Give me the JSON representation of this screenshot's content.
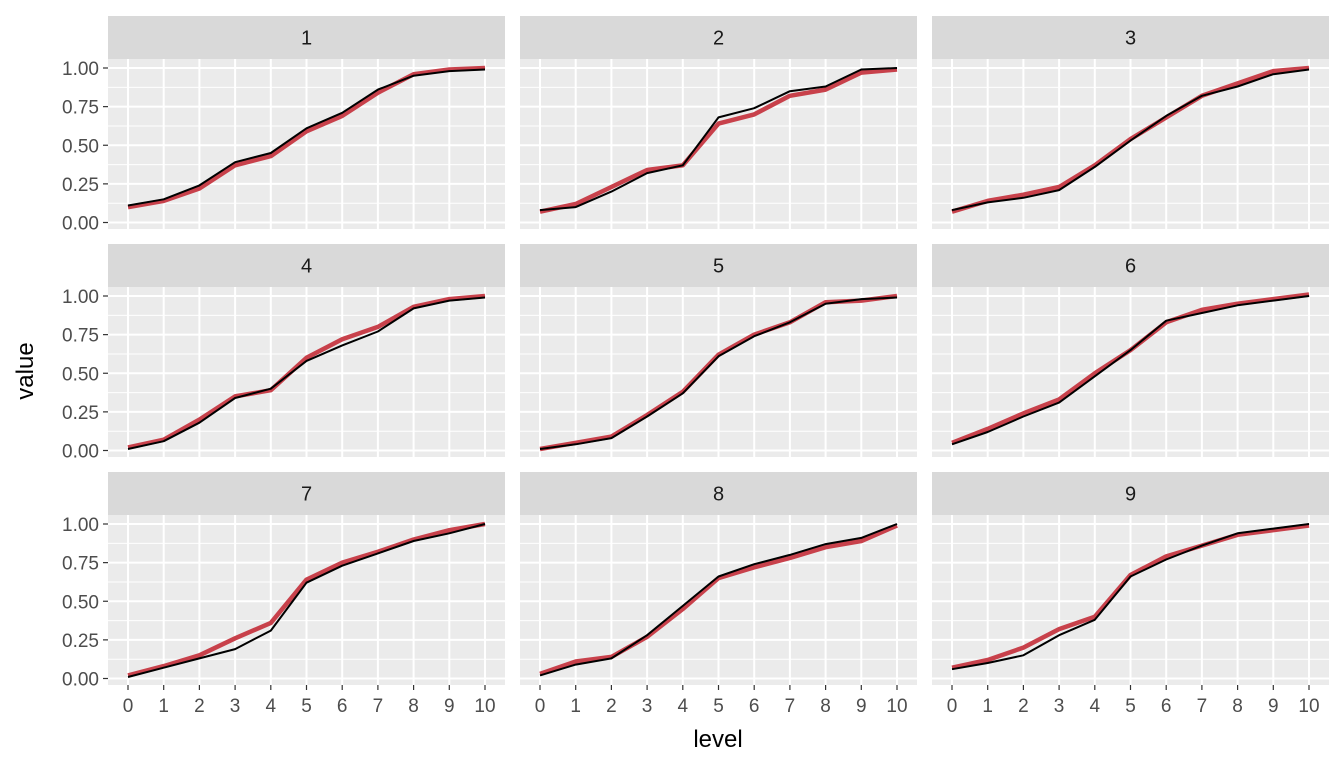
{
  "chart_data": {
    "type": "line",
    "layout": "facet_wrap 3x3",
    "xlabel": "level",
    "ylabel": "value",
    "x": [
      0,
      1,
      2,
      3,
      4,
      5,
      6,
      7,
      8,
      9,
      10
    ],
    "x_ticks": [
      "0",
      "1",
      "2",
      "3",
      "4",
      "5",
      "6",
      "7",
      "8",
      "9",
      "10"
    ],
    "y_ticks": [
      "0.00",
      "0.25",
      "0.50",
      "0.75",
      "1.00"
    ],
    "ylim": [
      0,
      1.1
    ],
    "grid": true,
    "series_colors": {
      "red": "#c8414b",
      "black": "#000000"
    },
    "panels": [
      {
        "label": "1",
        "red": [
          0.1,
          0.14,
          0.22,
          0.37,
          0.43,
          0.59,
          0.69,
          0.84,
          0.96,
          0.99,
          1.0
        ],
        "black": [
          0.11,
          0.15,
          0.24,
          0.39,
          0.45,
          0.61,
          0.71,
          0.86,
          0.95,
          0.98,
          0.99
        ]
      },
      {
        "label": "2",
        "red": [
          0.07,
          0.12,
          0.23,
          0.34,
          0.37,
          0.64,
          0.7,
          0.82,
          0.86,
          0.97,
          0.99
        ],
        "black": [
          0.08,
          0.1,
          0.2,
          0.32,
          0.37,
          0.68,
          0.74,
          0.85,
          0.88,
          0.99,
          1.0
        ]
      },
      {
        "label": "3",
        "red": [
          0.07,
          0.14,
          0.18,
          0.23,
          0.37,
          0.54,
          0.68,
          0.82,
          0.9,
          0.98,
          1.0
        ],
        "black": [
          0.08,
          0.13,
          0.16,
          0.21,
          0.36,
          0.53,
          0.69,
          0.82,
          0.88,
          0.96,
          0.99
        ]
      },
      {
        "label": "4",
        "red": [
          0.02,
          0.07,
          0.2,
          0.35,
          0.39,
          0.6,
          0.72,
          0.8,
          0.93,
          0.98,
          1.0
        ],
        "black": [
          0.01,
          0.06,
          0.18,
          0.34,
          0.4,
          0.58,
          0.68,
          0.77,
          0.92,
          0.97,
          0.99
        ]
      },
      {
        "label": "5",
        "red": [
          0.01,
          0.05,
          0.09,
          0.23,
          0.38,
          0.62,
          0.75,
          0.83,
          0.96,
          0.97,
          1.0
        ],
        "black": [
          0.01,
          0.04,
          0.08,
          0.22,
          0.37,
          0.61,
          0.74,
          0.83,
          0.95,
          0.98,
          0.99
        ]
      },
      {
        "label": "6",
        "red": [
          0.05,
          0.14,
          0.24,
          0.33,
          0.5,
          0.65,
          0.83,
          0.91,
          0.95,
          0.98,
          1.01
        ],
        "black": [
          0.04,
          0.12,
          0.22,
          0.31,
          0.48,
          0.65,
          0.84,
          0.89,
          0.94,
          0.97,
          1.0
        ]
      },
      {
        "label": "7",
        "red": [
          0.02,
          0.08,
          0.15,
          0.26,
          0.36,
          0.64,
          0.75,
          0.82,
          0.9,
          0.96,
          1.0
        ],
        "black": [
          0.01,
          0.07,
          0.13,
          0.19,
          0.31,
          0.62,
          0.73,
          0.81,
          0.89,
          0.94,
          1.0
        ]
      },
      {
        "label": "8",
        "red": [
          0.03,
          0.11,
          0.14,
          0.27,
          0.45,
          0.65,
          0.72,
          0.78,
          0.85,
          0.89,
          0.99
        ],
        "black": [
          0.02,
          0.09,
          0.13,
          0.28,
          0.47,
          0.66,
          0.74,
          0.8,
          0.87,
          0.91,
          1.0
        ]
      },
      {
        "label": "9",
        "red": [
          0.07,
          0.12,
          0.2,
          0.32,
          0.4,
          0.67,
          0.79,
          0.86,
          0.93,
          0.96,
          0.99
        ],
        "black": [
          0.06,
          0.1,
          0.15,
          0.28,
          0.38,
          0.66,
          0.77,
          0.86,
          0.94,
          0.97,
          1.0
        ]
      }
    ]
  }
}
